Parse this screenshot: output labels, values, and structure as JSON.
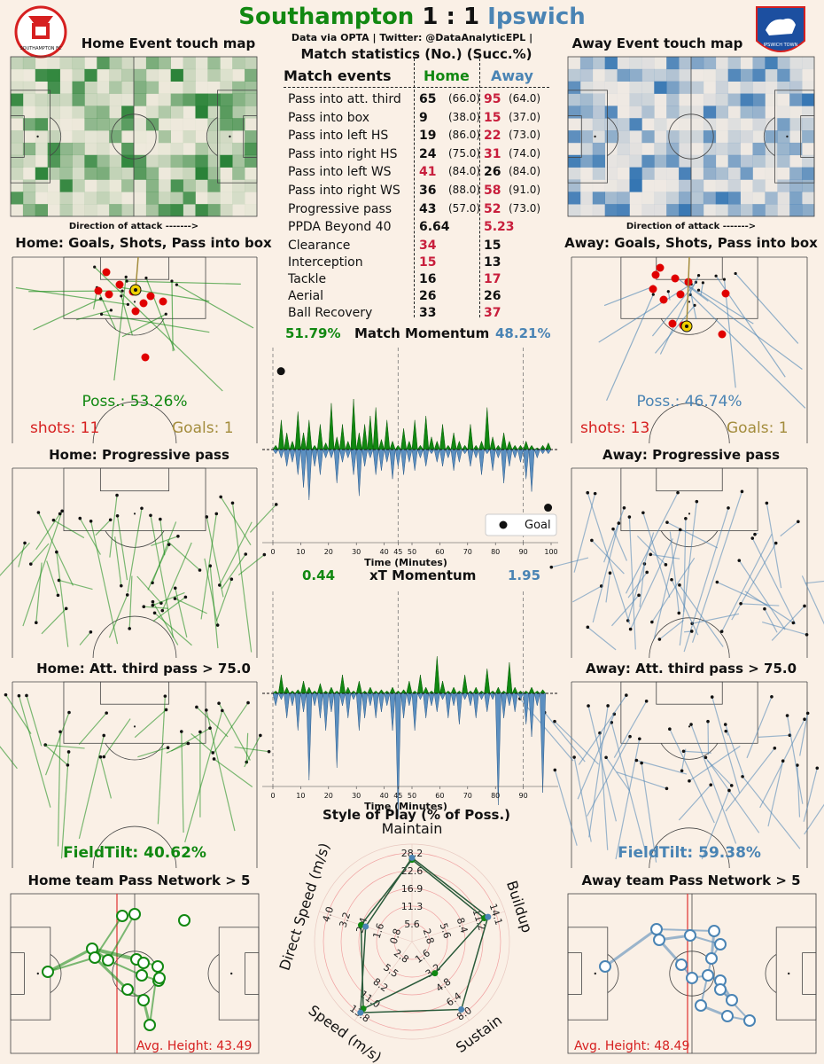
{
  "header": {
    "home_team": "Southampton",
    "score": "1 : 1",
    "away_team": "Ipswich",
    "subtitle": "Data via OPTA | Twitter: @DataAnalyticEPL |",
    "home_logo_text": "SOUTHAMPTON FC",
    "away_logo_text": "IPSWICH TOWN"
  },
  "colors": {
    "home": "#118811",
    "away": "#4a84b4",
    "background": "#faf0e6",
    "highlight": "#c81e3c"
  },
  "panels": {
    "home_touch": "Home Event touch map",
    "away_touch": "Away Event touch map",
    "direction": "Direction of attack ------->",
    "home_shots": "Home: Goals, Shots, Pass into box",
    "away_shots": "Away: Goals, Shots, Pass into box",
    "home_prog": "Home: Progressive pass",
    "away_prog": "Away: Progressive pass",
    "home_att": "Home: Att. third pass > 75.0",
    "away_att": "Away: Att. third pass > 75.0",
    "home_net": "Home team Pass Network > 5",
    "away_net": "Away team Pass Network > 5",
    "home_poss": "Poss.: 53.26%",
    "away_poss": "Poss.: 46.74%",
    "home_shots_count": "shots: 11",
    "away_shots_count": "shots: 13",
    "home_goals": "Goals: 1",
    "away_goals": "Goals: 1",
    "home_fieldtilt": "FieldTilt: 40.62%",
    "away_fieldtilt": "FieldTilt: 59.38%",
    "home_avg_height": "Avg. Height: 43.49",
    "away_avg_height": "Avg. Height: 48.49"
  },
  "stats": {
    "title": "Match statistics (No.) (Succ.%)",
    "col_events": "Match events",
    "col_home": "Home",
    "col_away": "Away",
    "rows": [
      {
        "label": "Pass into att. third",
        "home": "65",
        "home_pct": "(66.0)",
        "away": "95",
        "away_pct": "(64.0)",
        "hi": "away"
      },
      {
        "label": "Pass into box",
        "home": "9",
        "home_pct": "(38.0)",
        "away": "15",
        "away_pct": "(37.0)",
        "hi": "away"
      },
      {
        "label": "Pass into left HS",
        "home": "19",
        "home_pct": "(86.0)",
        "away": "22",
        "away_pct": "(73.0)",
        "hi": "away"
      },
      {
        "label": "Pass into right HS",
        "home": "24",
        "home_pct": "(75.0)",
        "away": "31",
        "away_pct": "(74.0)",
        "hi": "away"
      },
      {
        "label": "Pass into left WS",
        "home": "41",
        "home_pct": "(84.0)",
        "away": "26",
        "away_pct": "(84.0)",
        "hi": "home"
      },
      {
        "label": "Pass into right WS",
        "home": "36",
        "home_pct": "(88.0)",
        "away": "58",
        "away_pct": "(91.0)",
        "hi": "away"
      },
      {
        "label": "Progressive pass",
        "home": "43",
        "home_pct": "(57.0)",
        "away": "52",
        "away_pct": "(73.0)",
        "hi": "away"
      },
      {
        "label": "PPDA Beyond 40",
        "home": "6.64",
        "home_pct": "",
        "away": "5.23",
        "away_pct": "",
        "hi": "away"
      },
      {
        "label": "Clearance",
        "home": "34",
        "home_pct": "",
        "away": "15",
        "away_pct": "",
        "hi": "home"
      },
      {
        "label": "Interception",
        "home": "15",
        "home_pct": "",
        "away": "13",
        "away_pct": "",
        "hi": "home"
      },
      {
        "label": "Tackle",
        "home": "16",
        "home_pct": "",
        "away": "17",
        "away_pct": "",
        "hi": "away"
      },
      {
        "label": "Aerial",
        "home": "26",
        "home_pct": "",
        "away": "26",
        "away_pct": "",
        "hi": "none"
      },
      {
        "label": "Ball Recovery",
        "home": "33",
        "home_pct": "",
        "away": "37",
        "away_pct": "",
        "hi": "away"
      }
    ]
  },
  "chart_data": [
    {
      "type": "area",
      "title": "Match Momentum",
      "home_value": "51.79%",
      "away_value": "48.21%",
      "xlabel": "Time (Minutes)",
      "xticks": [
        "0",
        "10",
        "20",
        "30",
        "40",
        "45",
        "50",
        "60",
        "70",
        "80",
        "90",
        "100"
      ],
      "xlim": [
        0,
        100
      ],
      "ylim": [
        -1,
        1
      ],
      "legend": "Goal",
      "legend_position": "bottom-right",
      "goals": [
        {
          "team": "home",
          "minute": 1,
          "value": 0.93
        },
        {
          "team": "away",
          "minute": 97,
          "value": -0.69
        }
      ],
      "series": [
        {
          "name": "Home",
          "x": [
            0,
            2,
            4,
            6,
            8,
            10,
            12,
            14,
            16,
            18,
            20,
            22,
            24,
            26,
            28,
            30,
            32,
            34,
            36,
            38,
            40,
            42,
            44,
            46,
            48,
            50,
            52,
            54,
            56,
            58,
            60,
            62,
            64,
            66,
            68,
            70,
            72,
            74,
            76,
            78,
            80,
            82,
            84,
            86,
            88,
            90,
            92,
            94,
            96,
            98
          ],
          "values": [
            0.05,
            0.35,
            0.2,
            0.1,
            0.45,
            0.2,
            0.35,
            0.05,
            0.3,
            0.08,
            0.55,
            0.15,
            0.3,
            0.1,
            0.6,
            0.2,
            0.3,
            0.4,
            0.5,
            0.12,
            0.35,
            0.1,
            0.05,
            0.25,
            0.1,
            0.35,
            0.05,
            0.4,
            0.15,
            0.1,
            0.3,
            0.05,
            0.2,
            0.1,
            0.05,
            0.3,
            0.05,
            0.1,
            0.5,
            0.15,
            0.05,
            0.2,
            0.1,
            0.05,
            0.05,
            0.1,
            0.05,
            0.02,
            0.05,
            0.08
          ]
        },
        {
          "name": "Away",
          "x": [
            0,
            2,
            4,
            6,
            8,
            10,
            12,
            14,
            16,
            18,
            20,
            22,
            24,
            26,
            28,
            30,
            32,
            34,
            36,
            38,
            40,
            42,
            44,
            46,
            48,
            50,
            52,
            54,
            56,
            58,
            60,
            62,
            64,
            66,
            68,
            70,
            72,
            74,
            76,
            78,
            80,
            82,
            84,
            86,
            88,
            90,
            92,
            94,
            96,
            98
          ],
          "values": [
            0.05,
            0.1,
            0.2,
            0.15,
            0.3,
            0.45,
            0.6,
            0.2,
            0.3,
            0.1,
            0.1,
            0.4,
            0.15,
            0.1,
            0.3,
            0.55,
            0.2,
            0.1,
            0.3,
            0.25,
            0.15,
            0.35,
            0.2,
            0.3,
            0.15,
            0.25,
            0.1,
            0.2,
            0.05,
            0.15,
            0.2,
            0.1,
            0.25,
            0.15,
            0.05,
            0.2,
            0.1,
            0.3,
            0.05,
            0.25,
            0.1,
            0.4,
            0.2,
            0.1,
            0.15,
            0.35,
            0.5,
            0.1,
            0.05,
            0.05
          ]
        }
      ]
    },
    {
      "type": "area",
      "title": "xT Momentum",
      "home_value": "0.44",
      "away_value": "1.95",
      "xlabel": "Time (Minutes)",
      "xticks": [
        "0",
        "10",
        "20",
        "30",
        "40",
        "45",
        "50",
        "60",
        "70",
        "80",
        "90"
      ],
      "xlim": [
        0,
        100
      ],
      "ylim": [
        -1,
        1
      ],
      "series": [
        {
          "name": "Home",
          "x": [
            0,
            2,
            4,
            6,
            8,
            10,
            12,
            14,
            16,
            18,
            20,
            22,
            24,
            26,
            28,
            30,
            32,
            34,
            36,
            38,
            40,
            42,
            44,
            46,
            48,
            50,
            52,
            54,
            56,
            58,
            60,
            62,
            64,
            66,
            68,
            70,
            72,
            74,
            76,
            78,
            80,
            82,
            84,
            86,
            88,
            90,
            92,
            94,
            96
          ],
          "values": [
            0.02,
            0.15,
            0.05,
            0.02,
            0.03,
            0.1,
            0.05,
            0.02,
            0.08,
            0.02,
            0.05,
            0.02,
            0.15,
            0.05,
            0.02,
            0.1,
            0.02,
            0.05,
            0.02,
            0.03,
            0.02,
            0.05,
            0.02,
            0.03,
            0.1,
            0.02,
            0.15,
            0.05,
            0.02,
            0.3,
            0.1,
            0.02,
            0.05,
            0.02,
            0.15,
            0.02,
            0.05,
            0.02,
            0.2,
            0.02,
            0.05,
            0.02,
            0.25,
            0.05,
            0.02,
            0.02,
            0.05,
            0.02,
            0.03
          ]
        },
        {
          "name": "Away",
          "x": [
            0,
            2,
            4,
            6,
            8,
            10,
            12,
            14,
            16,
            18,
            20,
            22,
            24,
            26,
            28,
            30,
            32,
            34,
            36,
            38,
            40,
            42,
            44,
            46,
            48,
            50,
            52,
            54,
            56,
            58,
            60,
            62,
            64,
            66,
            68,
            70,
            72,
            74,
            76,
            78,
            80,
            82,
            84,
            86,
            88,
            90,
            92,
            94,
            96
          ],
          "values": [
            0.1,
            0.05,
            0.2,
            0.1,
            0.3,
            0.15,
            0.7,
            0.1,
            0.2,
            0.3,
            0.15,
            0.6,
            0.1,
            0.2,
            0.05,
            0.3,
            0.2,
            0.1,
            0.2,
            0.15,
            0.1,
            0.3,
            1.0,
            0.2,
            0.1,
            0.3,
            0.05,
            0.2,
            0.1,
            0.15,
            0.05,
            0.2,
            0.1,
            0.25,
            0.05,
            0.1,
            0.2,
            0.05,
            0.15,
            0.05,
            0.9,
            0.2,
            0.1,
            0.15,
            0.05,
            0.25,
            0.35,
            0.1,
            0.8
          ]
        }
      ]
    },
    {
      "type": "radar",
      "title": "Style of Play (% of Poss.)",
      "axes": [
        "Maintain",
        "Buildup",
        "Sustain",
        "Speed (m/s)",
        "Direct Speed (m/s)"
      ],
      "rings": {
        "Maintain": [
          "5.6",
          "11.3",
          "16.9",
          "22.6",
          "28.2"
        ],
        "Buildup": [
          "2.8",
          "5.6",
          "8.4",
          "11.2",
          "14.1"
        ],
        "Sustain": [
          "1.6",
          "3.2",
          "4.8",
          "6.4",
          "8.0"
        ],
        "Speed (m/s)": [
          "2.8",
          "5.5",
          "8.2",
          "11.0",
          "13.8"
        ],
        "Direct Speed (m/s)": [
          "0.8",
          "1.6",
          "2.4",
          "3.2",
          "4.0"
        ]
      },
      "series": [
        {
          "name": "Home",
          "values": [
            0.84,
            0.78,
            0.4,
            0.85,
            0.55
          ]
        },
        {
          "name": "Away",
          "values": [
            0.86,
            0.82,
            0.86,
            0.9,
            0.5
          ]
        }
      ]
    }
  ]
}
